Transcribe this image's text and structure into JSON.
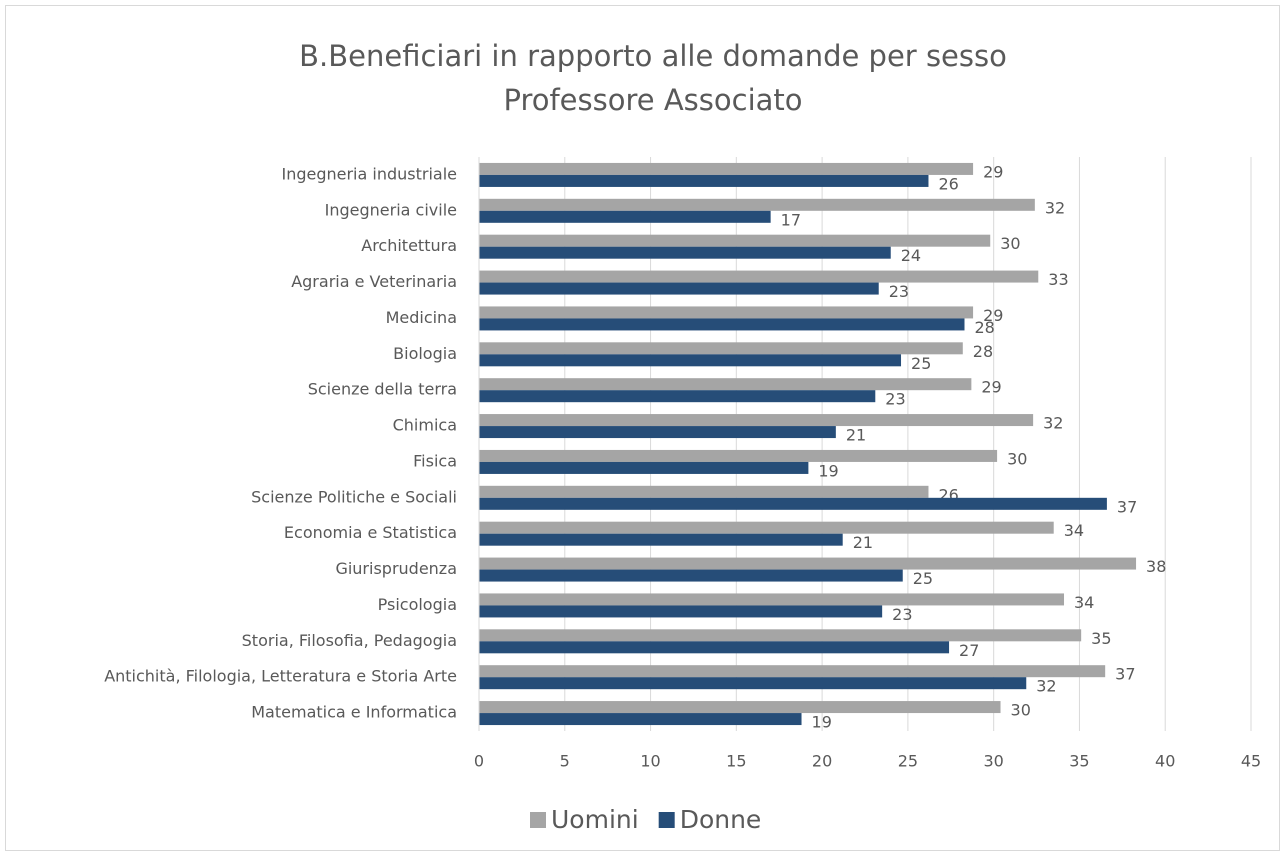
{
  "chart_data": {
    "type": "bar",
    "orientation": "horizontal",
    "title": "B.Beneficiari in rapporto alle domande per sesso",
    "subtitle": "Professore Associato",
    "categories": [
      "Ingegneria industriale",
      "Ingegneria civile",
      "Architettura",
      "Agraria e Veterinaria",
      "Medicina",
      "Biologia",
      "Scienze della terra",
      "Chimica",
      "Fisica",
      "Scienze Politiche e Sociali",
      "Economia e Statistica",
      "Giurisprudenza",
      "Psicologia",
      "Storia, Filosofia, Pedagogia",
      "Antichità, Filologia, Letteratura e Storia Arte",
      "Matematica e Informatica"
    ],
    "series": [
      {
        "name": "Uomini",
        "color": "#a5a5a5",
        "values": [
          28.8,
          32.4,
          29.8,
          32.6,
          28.8,
          28.2,
          28.7,
          32.3,
          30.2,
          26.2,
          33.5,
          38.3,
          34.1,
          35.1,
          36.5,
          30.4
        ],
        "value_labels": [
          "29",
          "32",
          "30",
          "33",
          "29",
          "28",
          "29",
          "32",
          "30",
          "26",
          "34",
          "38",
          "34",
          "35",
          "37",
          "30"
        ]
      },
      {
        "name": "Donne",
        "color": "#264d78",
        "values": [
          26.2,
          17.0,
          24.0,
          23.3,
          28.3,
          24.6,
          23.1,
          20.8,
          19.2,
          36.6,
          21.2,
          24.7,
          23.5,
          27.4,
          31.9,
          18.8
        ],
        "value_labels": [
          "26",
          "17",
          "24",
          "23",
          "28",
          "25",
          "23",
          "21",
          "19",
          "37",
          "21",
          "25",
          "23",
          "27",
          "32",
          "19"
        ]
      }
    ],
    "xlim": [
      0,
      45
    ],
    "xticks": [
      0,
      5,
      10,
      15,
      20,
      25,
      30,
      35,
      40,
      45
    ],
    "grid": true,
    "legend": "bottom"
  }
}
